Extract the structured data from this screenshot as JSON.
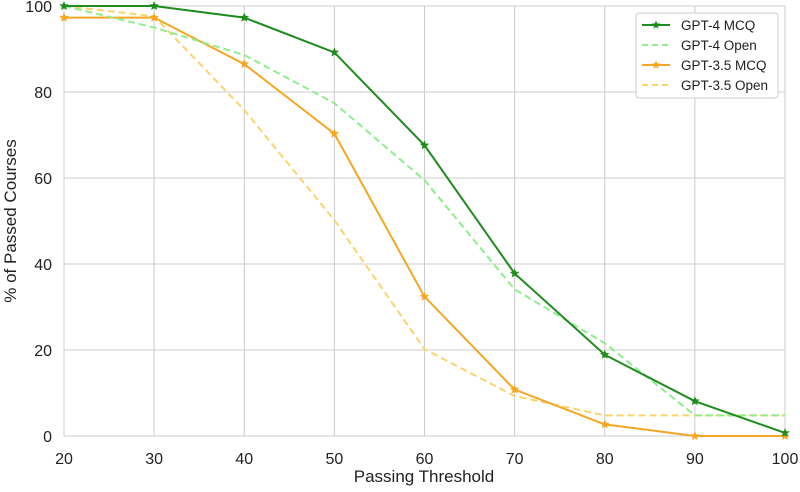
{
  "chart_data": {
    "type": "line",
    "title": "",
    "xlabel": "Passing Threshold",
    "ylabel": "% of Passed Courses",
    "xlim": [
      20,
      100
    ],
    "ylim": [
      0,
      100
    ],
    "xticks": [
      20,
      30,
      40,
      50,
      60,
      70,
      80,
      90,
      100
    ],
    "yticks": [
      0,
      20,
      40,
      60,
      80,
      100
    ],
    "grid": true,
    "legend_position": "top-right",
    "x": [
      20,
      30,
      40,
      50,
      60,
      70,
      80,
      90,
      100
    ],
    "series": [
      {
        "name": "GPT-4 MCQ",
        "color": "#1e8c1e",
        "style": "solid",
        "marker": "star",
        "values": [
          100,
          100,
          97.3,
          89.2,
          67.6,
          37.8,
          18.9,
          8.1,
          0.7
        ]
      },
      {
        "name": "GPT-4 Open",
        "color": "#90ee90",
        "style": "dashed",
        "marker": "none",
        "values": [
          100,
          95,
          88.6,
          77.4,
          59.5,
          34.1,
          21.6,
          4.8,
          4.8
        ]
      },
      {
        "name": "GPT-3.5 MCQ",
        "color": "#f5a623",
        "style": "solid",
        "marker": "star",
        "values": [
          97.3,
          97.3,
          86.5,
          70.3,
          32.4,
          10.8,
          2.7,
          0,
          0
        ]
      },
      {
        "name": "GPT-3.5 Open",
        "color": "#f9d56e",
        "style": "dashed",
        "marker": "none",
        "values": [
          100,
          97.6,
          75.8,
          50.2,
          20.2,
          9.3,
          4.8,
          4.8,
          4.8
        ]
      }
    ]
  }
}
